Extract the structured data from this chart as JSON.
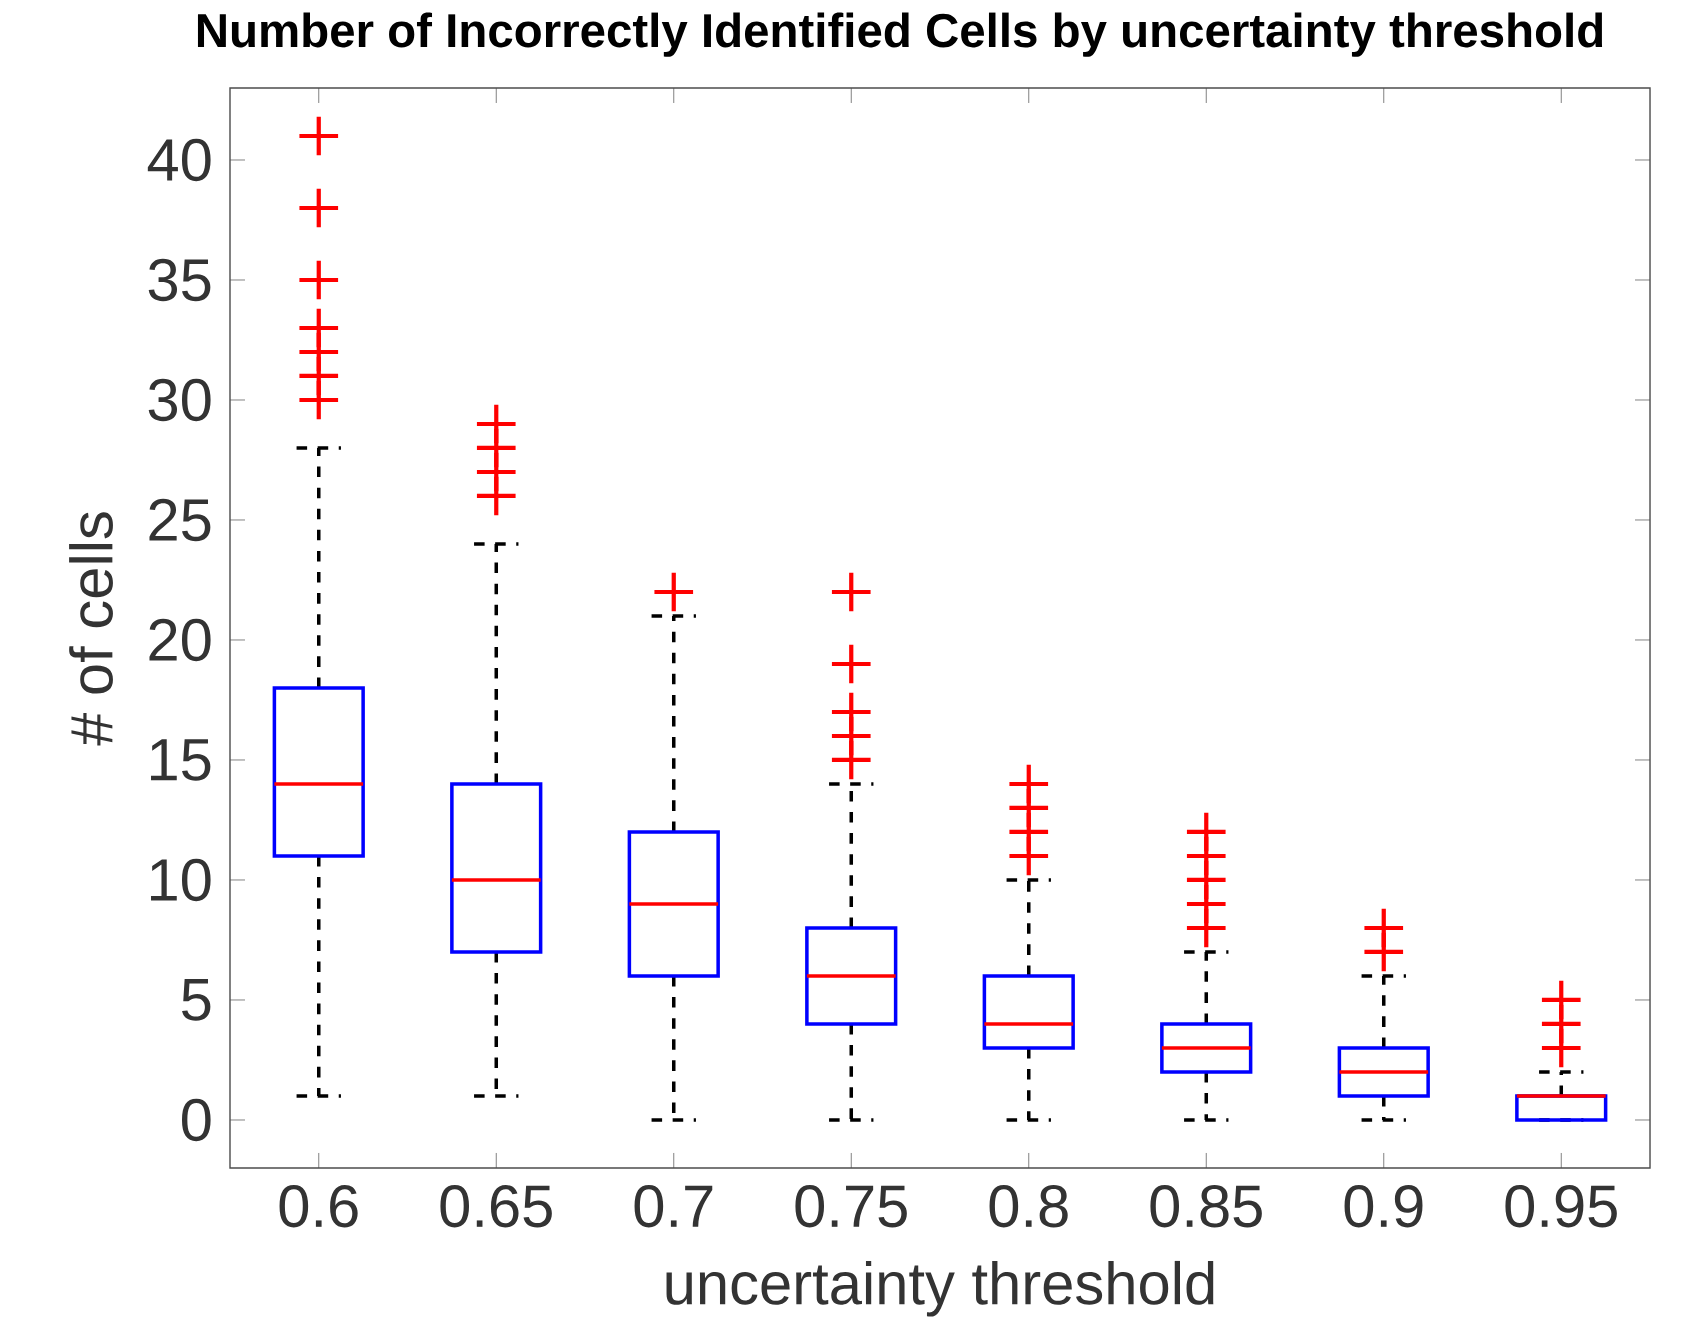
{
  "chart_data": {
    "type": "box",
    "title": "Number of Incorrectly Identified Cells by uncertainty threshold",
    "xlabel": "uncertainty threshold",
    "ylabel": "# of cells",
    "categories": [
      "0.6",
      "0.65",
      "0.7",
      "0.75",
      "0.8",
      "0.85",
      "0.9",
      "0.95"
    ],
    "color": "#0000ff",
    "boxes": [
      {
        "low": 1,
        "q1": 11,
        "median": 14,
        "q3": 18,
        "high": 28,
        "outliers": [
          30,
          31,
          32,
          33,
          35,
          38,
          41
        ]
      },
      {
        "low": 1,
        "q1": 7,
        "median": 10,
        "q3": 14,
        "high": 24,
        "outliers": [
          26,
          27,
          28,
          29
        ]
      },
      {
        "low": 0,
        "q1": 6,
        "median": 9,
        "q3": 12,
        "high": 21,
        "outliers": [
          22
        ]
      },
      {
        "low": 0,
        "q1": 4,
        "median": 6,
        "q3": 8,
        "high": 14,
        "outliers": [
          15,
          16,
          17,
          19,
          22
        ]
      },
      {
        "low": 0,
        "q1": 3,
        "median": 4,
        "q3": 6,
        "high": 10,
        "outliers": [
          11,
          12,
          13,
          14
        ]
      },
      {
        "low": 0,
        "q1": 2,
        "median": 3,
        "q3": 4,
        "high": 7,
        "outliers": [
          8,
          9,
          10,
          11,
          12
        ]
      },
      {
        "low": 0,
        "q1": 1,
        "median": 2,
        "q3": 3,
        "high": 6,
        "outliers": [
          7,
          8
        ]
      },
      {
        "low": 0,
        "q1": 0,
        "median": 1,
        "q3": 1,
        "high": 2,
        "outliers": [
          3,
          4,
          5
        ]
      }
    ],
    "ylim": [
      -2,
      43
    ],
    "yticks": [
      0,
      5,
      10,
      15,
      20,
      25,
      30,
      35,
      40
    ]
  }
}
